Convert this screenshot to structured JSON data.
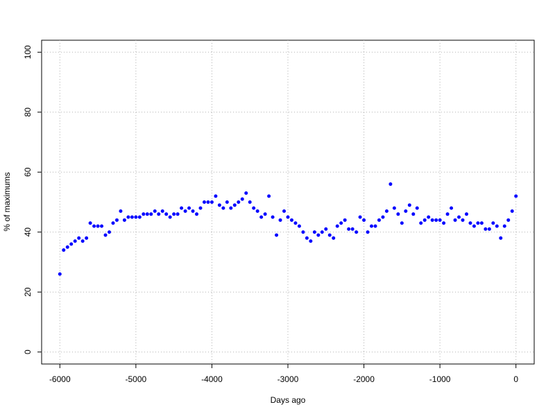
{
  "chart_data": {
    "type": "scatter",
    "x_label": "Days ago",
    "y_label": "% of maximums",
    "xlim": [
      -6240,
      240
    ],
    "ylim": [
      -4,
      104
    ],
    "xticks": [
      -6000,
      -5000,
      -4000,
      -3000,
      -2000,
      -1000,
      0
    ],
    "yticks": [
      0,
      20,
      40,
      60,
      80,
      100
    ],
    "grid": true,
    "color": "#0000ff",
    "x": [
      -6000,
      -5950,
      -5900,
      -5850,
      -5800,
      -5750,
      -5700,
      -5650,
      -5600,
      -5550,
      -5500,
      -5450,
      -5400,
      -5350,
      -5300,
      -5250,
      -5200,
      -5150,
      -5100,
      -5050,
      -5000,
      -4950,
      -4900,
      -4850,
      -4800,
      -4750,
      -4700,
      -4650,
      -4600,
      -4550,
      -4500,
      -4450,
      -4400,
      -4350,
      -4300,
      -4250,
      -4200,
      -4150,
      -4100,
      -4050,
      -4000,
      -3950,
      -3900,
      -3850,
      -3800,
      -3750,
      -3700,
      -3650,
      -3600,
      -3550,
      -3500,
      -3450,
      -3400,
      -3350,
      -3300,
      -3250,
      -3200,
      -3150,
      -3100,
      -3050,
      -3000,
      -2950,
      -2900,
      -2850,
      -2800,
      -2750,
      -2700,
      -2650,
      -2600,
      -2550,
      -2500,
      -2450,
      -2400,
      -2350,
      -2300,
      -2250,
      -2200,
      -2150,
      -2100,
      -2050,
      -2000,
      -1950,
      -1900,
      -1850,
      -1800,
      -1750,
      -1700,
      -1650,
      -1600,
      -1550,
      -1500,
      -1450,
      -1400,
      -1350,
      -1300,
      -1250,
      -1200,
      -1150,
      -1100,
      -1050,
      -1000,
      -950,
      -900,
      -850,
      -800,
      -750,
      -700,
      -650,
      -600,
      -550,
      -500,
      -450,
      -400,
      -350,
      -300,
      -250,
      -200,
      -150,
      -100,
      -50,
      0
    ],
    "values": [
      26,
      34,
      35,
      36,
      37,
      38,
      37,
      38,
      43,
      42,
      42,
      42,
      39,
      40,
      43,
      44,
      47,
      44,
      45,
      45,
      45,
      45,
      46,
      46,
      46,
      47,
      46,
      47,
      46,
      45,
      46,
      46,
      48,
      47,
      48,
      47,
      46,
      48,
      50,
      50,
      50,
      52,
      49,
      48,
      50,
      48,
      49,
      50,
      51,
      53,
      50,
      48,
      47,
      45,
      46,
      52,
      45,
      39,
      44,
      47,
      45,
      44,
      43,
      42,
      40,
      38,
      37,
      40,
      39,
      40,
      41,
      39,
      38,
      42,
      43,
      44,
      41,
      41,
      40,
      45,
      44,
      40,
      42,
      42,
      44,
      45,
      47,
      56,
      48,
      46,
      43,
      47,
      49,
      46,
      48,
      43,
      44,
      45,
      44,
      44,
      44,
      43,
      46,
      48,
      44,
      45,
      44,
      46,
      43,
      42,
      43,
      43,
      41,
      41,
      43,
      42,
      38,
      42,
      44,
      47,
      52
    ]
  }
}
